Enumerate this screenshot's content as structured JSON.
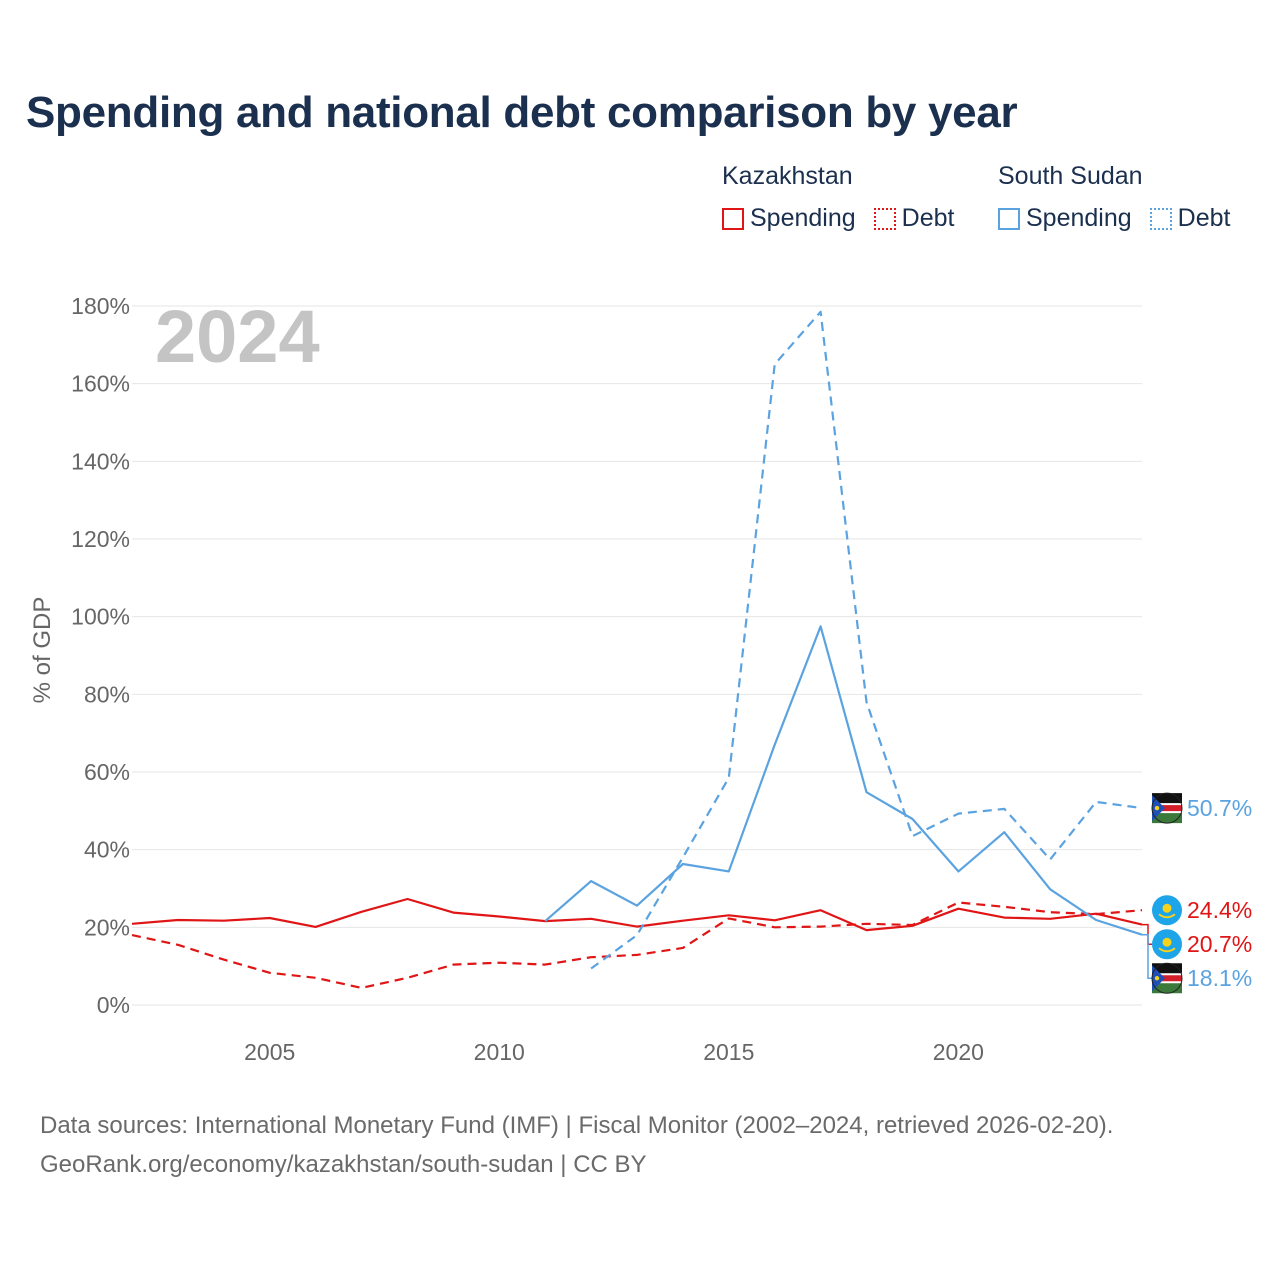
{
  "title": "Spending and national debt comparison by year",
  "legend": {
    "groups": [
      {
        "country": "Kazakhstan",
        "color": "#e01515",
        "items": [
          {
            "label": "Spending",
            "style": "solid"
          },
          {
            "label": "Debt",
            "style": "dotted"
          }
        ]
      },
      {
        "country": "South Sudan",
        "color": "#5ba3e0",
        "items": [
          {
            "label": "Spending",
            "style": "solid"
          },
          {
            "label": "Debt",
            "style": "dotted"
          }
        ]
      }
    ]
  },
  "footer": {
    "line1": "Data sources: International Monetary Fund (IMF) | Fiscal Monitor (2002–2024, retrieved 2026-02-20).",
    "line2": "GeoRank.org/economy/kazakhstan/south-sudan | CC BY"
  },
  "chart_data": {
    "type": "line",
    "watermark_year": "2024",
    "ylabel": "% of GDP",
    "xlabel": "",
    "ylim": [
      0,
      180
    ],
    "xlim": [
      2002,
      2024
    ],
    "y_ticks": [
      {
        "value": 0,
        "label": "0%"
      },
      {
        "value": 20,
        "label": "20%"
      },
      {
        "value": 40,
        "label": "40%"
      },
      {
        "value": 60,
        "label": "60%"
      },
      {
        "value": 80,
        "label": "80%"
      },
      {
        "value": 100,
        "label": "100%"
      },
      {
        "value": 120,
        "label": "120%"
      },
      {
        "value": 140,
        "label": "140%"
      },
      {
        "value": 160,
        "label": "160%"
      },
      {
        "value": 180,
        "label": "180%"
      }
    ],
    "x_ticks": [
      {
        "value": 2005,
        "label": "2005"
      },
      {
        "value": 2010,
        "label": "2010"
      },
      {
        "value": 2015,
        "label": "2015"
      },
      {
        "value": 2020,
        "label": "2020"
      }
    ],
    "grid": true,
    "series": [
      {
        "name": "Kazakhstan Spending",
        "country": "Kazakhstan",
        "kind": "Spending",
        "color": "#e01515",
        "dash": "solid",
        "x": [
          2002,
          2003,
          2004,
          2005,
          2006,
          2007,
          2008,
          2009,
          2010,
          2011,
          2012,
          2013,
          2014,
          2015,
          2016,
          2017,
          2018,
          2019,
          2020,
          2021,
          2022,
          2023,
          2024
        ],
        "values": [
          20.9,
          21.9,
          21.7,
          22.4,
          20.1,
          24.0,
          27.3,
          23.8,
          22.8,
          21.6,
          22.2,
          20.2,
          21.7,
          23.1,
          21.8,
          24.4,
          19.3,
          20.4,
          24.8,
          22.5,
          22.2,
          23.5,
          20.7
        ],
        "end_label": "20.7%",
        "flag": "kazakhstan"
      },
      {
        "name": "Kazakhstan Debt",
        "country": "Kazakhstan",
        "kind": "Debt",
        "color": "#e01515",
        "dash": "dashed",
        "x": [
          2002,
          2003,
          2004,
          2005,
          2006,
          2007,
          2008,
          2009,
          2010,
          2011,
          2012,
          2013,
          2014,
          2015,
          2016,
          2017,
          2018,
          2019,
          2020,
          2021,
          2022,
          2023,
          2024
        ],
        "values": [
          18.0,
          15.5,
          11.7,
          8.3,
          7.0,
          4.4,
          7.0,
          10.4,
          10.9,
          10.4,
          12.3,
          12.9,
          14.7,
          22.3,
          20.0,
          20.2,
          20.9,
          20.6,
          26.4,
          25.3,
          23.9,
          23.4,
          24.4
        ],
        "end_label": "24.4%",
        "flag": "kazakhstan"
      },
      {
        "name": "South Sudan Spending",
        "country": "South Sudan",
        "kind": "Spending",
        "color": "#5ba3e0",
        "dash": "solid",
        "x": [
          2011,
          2012,
          2013,
          2014,
          2015,
          2016,
          2017,
          2018,
          2019,
          2020,
          2021,
          2022,
          2023,
          2024
        ],
        "values": [
          21.6,
          31.9,
          25.6,
          36.3,
          34.4,
          67.0,
          97.5,
          54.8,
          47.9,
          34.4,
          44.5,
          29.8,
          21.9,
          18.1
        ],
        "end_label": "18.1%",
        "flag": "south-sudan"
      },
      {
        "name": "South Sudan Debt",
        "country": "South Sudan",
        "kind": "Debt",
        "color": "#5ba3e0",
        "dash": "dashed",
        "x": [
          2012,
          2013,
          2014,
          2015,
          2016,
          2017,
          2018,
          2019,
          2020,
          2021,
          2022,
          2023,
          2024
        ],
        "values": [
          9.4,
          18.0,
          38.0,
          58.5,
          165.0,
          178.5,
          78.0,
          43.5,
          49.3,
          50.5,
          37.5,
          52.3,
          50.7
        ],
        "end_label": "50.7%",
        "flag": "south-sudan"
      }
    ]
  }
}
